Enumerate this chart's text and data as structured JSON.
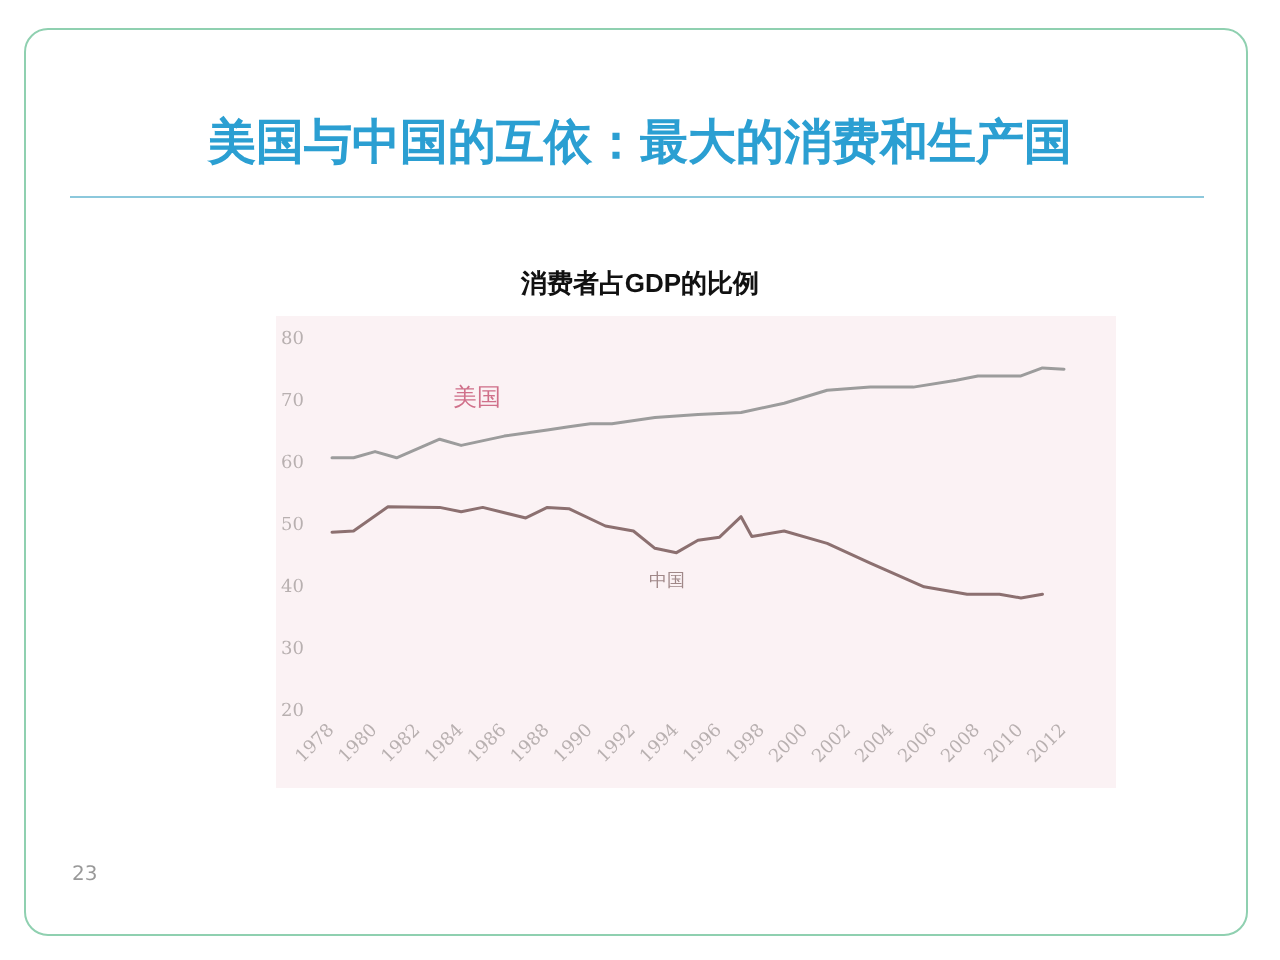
{
  "chart_data": {
    "type": "line",
    "title": "美国与中国的互依：最大的消费和生产国",
    "subtitle": "消费者占GDP的比例",
    "annotations": [
      "23"
    ],
    "xlim": [
      1978,
      2012
    ],
    "xticks": [
      1978,
      1980,
      1982,
      1984,
      1986,
      1988,
      1990,
      1992,
      1994,
      1996,
      1998,
      2000,
      2002,
      2004,
      2006,
      2008,
      2010,
      2012
    ],
    "ylim": [
      20,
      80
    ],
    "yticks": [
      20,
      30,
      40,
      50,
      60,
      70,
      80
    ],
    "grid": false,
    "legend": false,
    "marker": "none",
    "line_style": "solid",
    "series": [
      {
        "name": "美国",
        "color": "#9c9c9c",
        "x": [
          1978,
          1979,
          1980,
          1981,
          1983,
          1984,
          1986,
          1988,
          1989,
          1990,
          1991,
          1993,
          1995,
          1997,
          1999,
          2001,
          2003,
          2005,
          2007,
          2008,
          2010,
          2011,
          2012
        ],
        "values": [
          61,
          61,
          62,
          61,
          64,
          63,
          64.5,
          65.5,
          66,
          66.5,
          66.5,
          67.5,
          68,
          68.3,
          69.8,
          71.9,
          72.4,
          72.4,
          73.5,
          74.2,
          74.2,
          75.5,
          75.3
        ]
      },
      {
        "name": "中国",
        "color": "#8c7070",
        "x": [
          1978,
          1979,
          1980.6,
          1983,
          1984,
          1985,
          1987,
          1988,
          1989,
          1990.7,
          1992,
          1993,
          1994,
          1995,
          1996,
          1997,
          1997.5,
          1999,
          2001,
          2003,
          2005.5,
          2007.5,
          2009,
          2010,
          2011
        ],
        "values": [
          49,
          49.2,
          53.1,
          53,
          52.3,
          53,
          51.3,
          53,
          52.8,
          50,
          49.2,
          46.4,
          45.7,
          47.7,
          48.2,
          51.5,
          48.3,
          49.2,
          47.2,
          44,
          40.2,
          39,
          39,
          38.4,
          39
        ]
      }
    ]
  }
}
